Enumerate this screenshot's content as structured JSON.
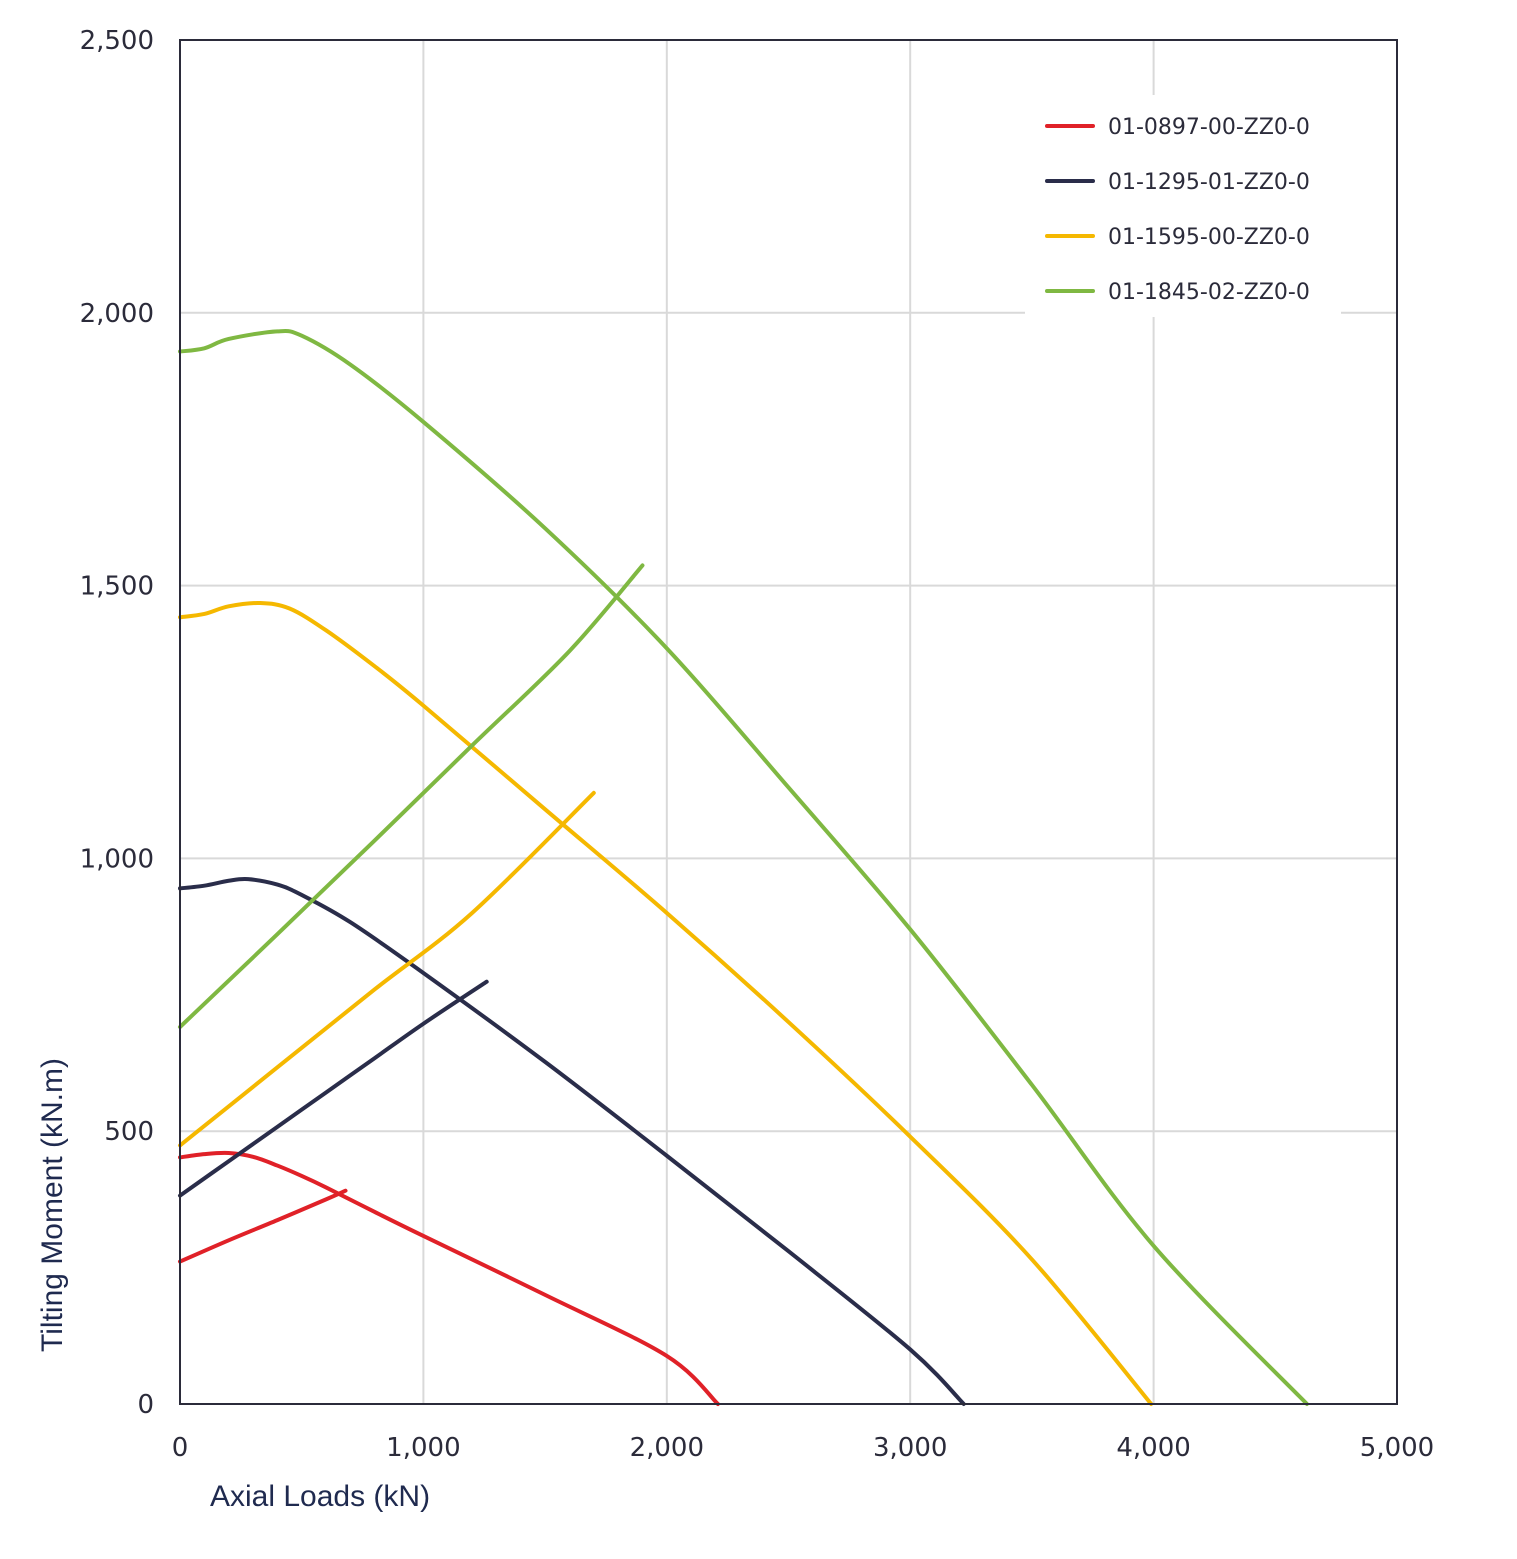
{
  "chart_data": {
    "type": "line",
    "title": "",
    "xlabel": "Axial Loads (kN)",
    "ylabel": "Tilting Moment (kN.m)",
    "xlim": [
      0,
      5000
    ],
    "ylim": [
      0,
      2500
    ],
    "x_ticks": [
      0,
      1000,
      2000,
      3000,
      4000,
      5000
    ],
    "x_tick_labels": [
      "0",
      "1,000",
      "2,000",
      "3,000",
      "4,000",
      "5,000"
    ],
    "y_ticks": [
      0,
      500,
      1000,
      1500,
      2000,
      2500
    ],
    "y_tick_labels": [
      "0",
      "500",
      "1,000",
      "1,500",
      "2,000",
      "2,500"
    ],
    "grid": true,
    "legend_position": "top-right",
    "series": [
      {
        "name": "01-0897-00-ZZ0-0",
        "color": "#e02128",
        "curves": [
          [
            [
              0,
              452
            ],
            [
              100,
              458
            ],
            [
              200,
              460
            ],
            [
              300,
              453
            ],
            [
              400,
              437
            ],
            [
              500,
              418
            ],
            [
              600,
              397
            ],
            [
              800,
              352
            ],
            [
              1000,
              308
            ],
            [
              1500,
              200
            ],
            [
              2000,
              88
            ],
            [
              2210,
              0
            ]
          ],
          [
            [
              0,
              261
            ],
            [
              200,
              300
            ],
            [
              400,
              337
            ],
            [
              600,
              375
            ],
            [
              680,
              391
            ]
          ]
        ]
      },
      {
        "name": "01-1295-01-ZZ0-0",
        "color": "#2a2d4a",
        "curves": [
          [
            [
              0,
              945
            ],
            [
              100,
              950
            ],
            [
              200,
              959
            ],
            [
              280,
              962
            ],
            [
              400,
              952
            ],
            [
              500,
              933
            ],
            [
              700,
              883
            ],
            [
              1000,
              790
            ],
            [
              1500,
              627
            ],
            [
              2000,
              455
            ],
            [
              2500,
              280
            ],
            [
              3000,
              100
            ],
            [
              3220,
              0
            ]
          ],
          [
            [
              0,
              382
            ],
            [
              200,
              445
            ],
            [
              400,
              508
            ],
            [
              600,
              571
            ],
            [
              800,
              634
            ],
            [
              1000,
              697
            ],
            [
              1260,
              774
            ]
          ]
        ]
      },
      {
        "name": "01-1595-00-ZZ0-0",
        "color": "#f5b800",
        "curves": [
          [
            [
              0,
              1442
            ],
            [
              100,
              1448
            ],
            [
              200,
              1462
            ],
            [
              330,
              1468
            ],
            [
              450,
              1458
            ],
            [
              600,
              1418
            ],
            [
              800,
              1352
            ],
            [
              1000,
              1280
            ],
            [
              1500,
              1090
            ],
            [
              2000,
              900
            ],
            [
              2500,
              700
            ],
            [
              3000,
              490
            ],
            [
              3500,
              265
            ],
            [
              3990,
              0
            ]
          ],
          [
            [
              0,
              474
            ],
            [
              400,
              617
            ],
            [
              800,
              760
            ],
            [
              1200,
              900
            ],
            [
              1700,
              1120
            ]
          ]
        ]
      },
      {
        "name": "01-1845-02-ZZ0-0",
        "color": "#7fb842",
        "curves": [
          [
            [
              0,
              1929
            ],
            [
              100,
              1935
            ],
            [
              200,
              1952
            ],
            [
              400,
              1966
            ],
            [
              500,
              1958
            ],
            [
              700,
              1905
            ],
            [
              1000,
              1800
            ],
            [
              1500,
              1605
            ],
            [
              2000,
              1385
            ],
            [
              2500,
              1130
            ],
            [
              3000,
              870
            ],
            [
              3500,
              585
            ],
            [
              4000,
              290
            ],
            [
              4630,
              0
            ]
          ],
          [
            [
              0,
              691
            ],
            [
              400,
              861
            ],
            [
              800,
              1033
            ],
            [
              1200,
              1207
            ],
            [
              1600,
              1380
            ],
            [
              1900,
              1537
            ]
          ]
        ]
      }
    ]
  }
}
